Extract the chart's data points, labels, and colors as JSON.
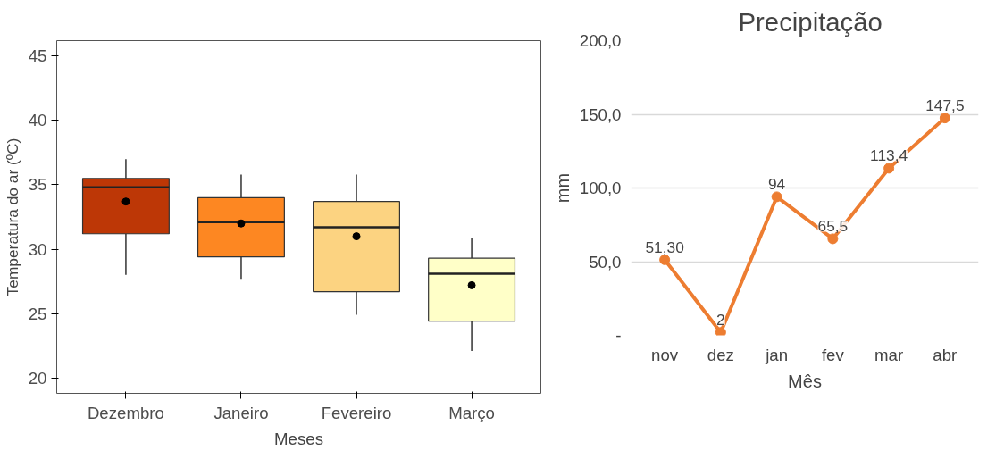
{
  "chart_data": [
    {
      "type": "box",
      "xlabel": "Meses",
      "ylabel": "Temperatura do ar (ºC)",
      "categories": [
        "Dezembro",
        "Janeiro",
        "Fevereiro",
        "Março"
      ],
      "colors": [
        "#bd3706",
        "#fd8722",
        "#fcd381",
        "#ffffc8"
      ],
      "boxes": [
        {
          "low": 28.0,
          "q1": 31.2,
          "median": 34.8,
          "q3": 35.5,
          "high": 37.0,
          "mean": 33.7
        },
        {
          "low": 27.7,
          "q1": 29.4,
          "median": 32.1,
          "q3": 34.0,
          "high": 35.8,
          "mean": 32.0
        },
        {
          "low": 24.9,
          "q1": 26.7,
          "median": 31.7,
          "q3": 33.7,
          "high": 35.8,
          "mean": 31.0
        },
        {
          "low": 22.1,
          "q1": 24.4,
          "median": 28.1,
          "q3": 29.3,
          "high": 30.9,
          "mean": 27.2
        }
      ],
      "ylim": [
        18.8,
        46.2
      ],
      "yticks": [
        20,
        25,
        30,
        35,
        40,
        45
      ],
      "grid": false
    },
    {
      "type": "line",
      "title": "Precipitação",
      "xlabel": "Mês",
      "ylabel": "mm",
      "categories": [
        "nov",
        "dez",
        "jan",
        "fev",
        "mar",
        "abr"
      ],
      "series": [
        {
          "color": "#ed7d31",
          "values": [
            51.3,
            2,
            94,
            65.5,
            113.4,
            147.5
          ],
          "value_labels": [
            "51,30",
            "2",
            "94",
            "65,5",
            "113,4",
            "147,5"
          ]
        }
      ],
      "ylim": [
        0,
        200
      ],
      "yticks": [
        {
          "value": 0,
          "label": "-"
        },
        {
          "value": 50,
          "label": "50,0"
        },
        {
          "value": 100,
          "label": "100,0"
        },
        {
          "value": 150,
          "label": "150,0"
        },
        {
          "value": 200,
          "label": "200,0"
        }
      ],
      "grid": "y",
      "marker": "circle",
      "line_style": "solid"
    }
  ]
}
